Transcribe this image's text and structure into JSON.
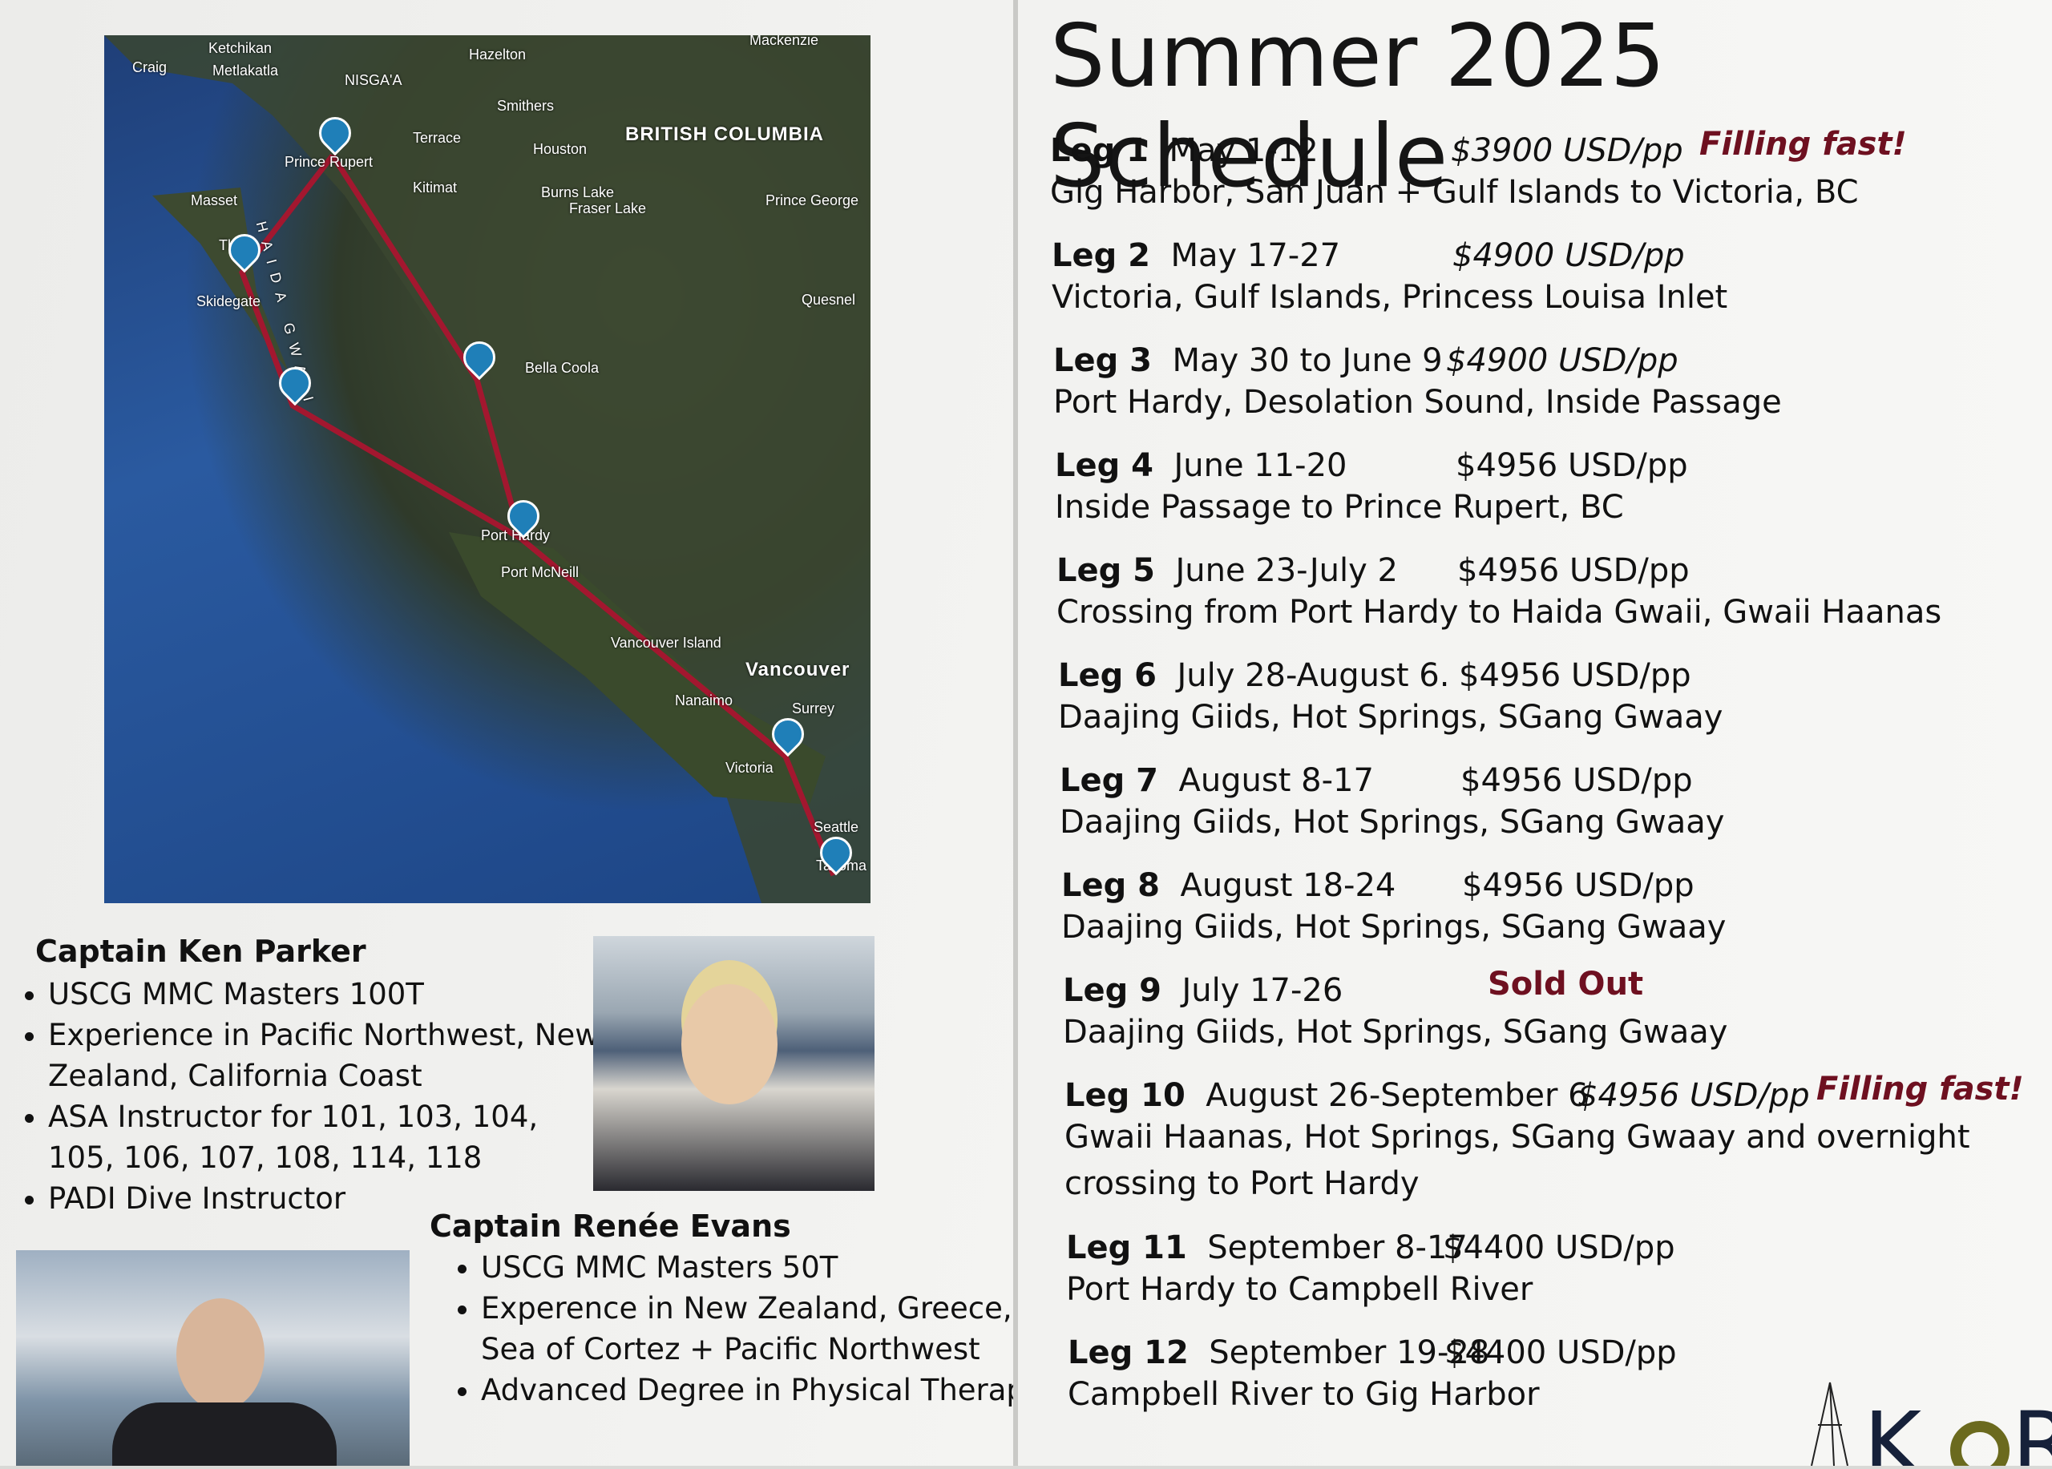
{
  "map": {
    "labels": [
      "Craig",
      "Ketchikan",
      "Metlakatla",
      "NISGA'A",
      "Hazelton",
      "Mackenzie",
      "Smithers",
      "Terrace",
      "Houston",
      "BRITISH COLUMBIA",
      "Prince Rupert",
      "Kitimat",
      "Burns Lake",
      "Fraser Lake",
      "Prince George",
      "Masset",
      "HAIDA GWAII",
      "Tlell",
      "Skidegate",
      "Quesnel",
      "Bella Coola",
      "Port Hardy",
      "Port McNeill",
      "Vancouver Island",
      "Vancouver",
      "Nanaimo",
      "Surrey",
      "Victoria",
      "Seattle",
      "Tacoma"
    ],
    "route_color": "#a3172f",
    "pin_color": "#1f7fb8"
  },
  "schedule": {
    "title": "Summer 2025 Schedule",
    "legs": [
      {
        "leg": "Leg 1",
        "dates": "May 1-12",
        "price": "$3900 USD/pp",
        "badge": "Filling fast!",
        "desc": [
          "Gig Harbor, San Juan + Gulf Islands to Victoria, BC"
        ]
      },
      {
        "leg": "Leg 2",
        "dates": "May 17-27",
        "price": "$4900 USD/pp",
        "badge": "",
        "desc": [
          "Victoria, Gulf Islands, Princess Louisa Inlet"
        ]
      },
      {
        "leg": "Leg 3",
        "dates": "May 30 to June 9",
        "price": "$4900 USD/pp",
        "badge": "",
        "desc": [
          "Port Hardy, Desolation Sound, Inside Passage"
        ]
      },
      {
        "leg": "Leg 4",
        "dates": "June 11-20",
        "price": "$4956 USD/pp",
        "badge": "",
        "desc": [
          "Inside Passage to Prince Rupert, BC"
        ]
      },
      {
        "leg": "Leg 5",
        "dates": "June 23-July 2",
        "price": "$4956 USD/pp",
        "badge": "",
        "desc": [
          "Crossing from Port Hardy to Haida Gwaii, Gwaii Haanas"
        ]
      },
      {
        "leg": "Leg 6",
        "dates": "July 28-August 6.",
        "price": "$4956 USD/pp",
        "badge": "",
        "desc": [
          "Daajing Giids, Hot Springs, SGang Gwaay"
        ]
      },
      {
        "leg": "Leg 7",
        "dates": "August 8-17",
        "price": "$4956 USD/pp",
        "badge": "",
        "desc": [
          "Daajing Giids, Hot Springs, SGang Gwaay"
        ]
      },
      {
        "leg": "Leg 8",
        "dates": "August 18-24",
        "price": "$4956 USD/pp",
        "badge": "",
        "desc": [
          "Daajing Giids, Hot Springs, SGang Gwaay"
        ]
      },
      {
        "leg": "Leg 9",
        "dates": "July 17-26",
        "price": "",
        "badge": "Sold Out",
        "desc": [
          "Daajing Giids, Hot Springs, SGang Gwaay"
        ]
      },
      {
        "leg": "Leg 10",
        "dates": "August 26-September 6",
        "price": "$4956 USD/pp",
        "badge": "Filling fast!",
        "desc": [
          "Gwaii Haanas, Hot Springs, SGang Gwaay and overnight",
          "crossing to Port Hardy"
        ]
      },
      {
        "leg": "Leg 11",
        "dates": "September 8-17",
        "price": "$4400 USD/pp",
        "badge": "",
        "desc": [
          "Port Hardy to Campbell River"
        ]
      },
      {
        "leg": "Leg 12",
        "dates": "September 19-28",
        "price": "$4400 USD/pp",
        "badge": "",
        "desc": [
          "Campbell River to Gig Harbor"
        ]
      }
    ],
    "accent": "#6e1020"
  },
  "captains": [
    {
      "name": "Captain Ken Parker",
      "items": [
        "USCG MMC Masters 100T",
        "Experience in Pacific Northwest, New Zealand, California Coast",
        "ASA Instructor for 101, 103, 104, 105, 106, 107, 108, 114, 118",
        "PADI Dive Instructor"
      ]
    },
    {
      "name": "Captain Renée Evans",
      "items": [
        "USCG MMC Masters 50T",
        "Experence in New Zealand, Greece, Sea of Cortez + Pacific Northwest",
        "Advanced Degree in Physical Therapy"
      ]
    }
  ],
  "logo": {
    "text": "KORU",
    "color": "#6b6a1e"
  }
}
